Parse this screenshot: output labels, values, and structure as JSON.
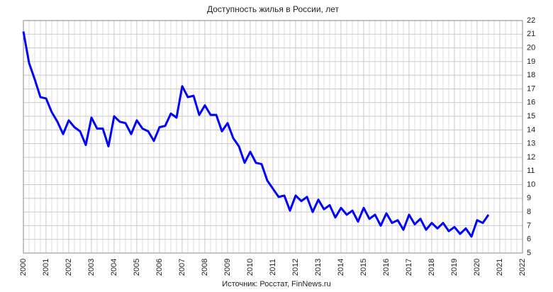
{
  "chart_data": {
    "type": "line",
    "title": "Доступность жилья в России, лет",
    "source": "Источник: Росстат, FinNews.ru",
    "x": [
      2000,
      2000.25,
      2000.5,
      2000.75,
      2001,
      2001.25,
      2001.5,
      2001.75,
      2002,
      2002.25,
      2002.5,
      2002.75,
      2003,
      2003.25,
      2003.5,
      2003.75,
      2004,
      2004.25,
      2004.5,
      2004.75,
      2005,
      2005.25,
      2005.5,
      2005.75,
      2006,
      2006.25,
      2006.5,
      2006.75,
      2007,
      2007.25,
      2007.5,
      2007.75,
      2008,
      2008.25,
      2008.5,
      2008.75,
      2009,
      2009.25,
      2009.5,
      2009.75,
      2010,
      2010.25,
      2010.5,
      2010.75,
      2011,
      2011.25,
      2011.5,
      2011.75,
      2012,
      2012.25,
      2012.5,
      2012.75,
      2013,
      2013.25,
      2013.5,
      2013.75,
      2014,
      2014.25,
      2014.5,
      2014.75,
      2015,
      2015.25,
      2015.5,
      2015.75,
      2016,
      2016.25,
      2016.5,
      2016.75,
      2017,
      2017.25,
      2017.5,
      2017.75,
      2018,
      2018.25,
      2018.5,
      2018.75,
      2019,
      2019.25,
      2019.5,
      2019.75,
      2020,
      2020.25,
      2020.5
    ],
    "series": [
      {
        "name": "Доступность жилья",
        "color": "#0000ff",
        "values": [
          21.2,
          18.9,
          17.7,
          16.4,
          16.3,
          15.3,
          14.6,
          13.7,
          14.7,
          14.2,
          13.9,
          12.9,
          14.9,
          14.1,
          14.1,
          12.8,
          15.0,
          14.6,
          14.5,
          13.7,
          14.7,
          14.1,
          13.9,
          13.2,
          14.2,
          14.3,
          15.2,
          14.9,
          17.2,
          16.4,
          16.5,
          15.1,
          15.8,
          15.1,
          15.1,
          13.9,
          14.5,
          13.4,
          12.8,
          11.6,
          12.4,
          11.6,
          11.5,
          10.3,
          9.7,
          9.1,
          9.2,
          8.1,
          9.2,
          8.8,
          9.1,
          8.0,
          8.9,
          8.2,
          8.5,
          7.6,
          8.3,
          7.8,
          8.1,
          7.3,
          8.3,
          7.5,
          7.8,
          7.0,
          7.9,
          7.2,
          7.4,
          6.7,
          7.8,
          7.1,
          7.5,
          6.7,
          7.2,
          6.8,
          7.2,
          6.6,
          6.9,
          6.4,
          6.8,
          6.2,
          7.4,
          7.2,
          7.8
        ]
      }
    ],
    "xlim": [
      2000,
      2022
    ],
    "xticks": [
      2000,
      2001,
      2002,
      2003,
      2004,
      2005,
      2006,
      2007,
      2008,
      2009,
      2010,
      2011,
      2012,
      2013,
      2014,
      2015,
      2016,
      2017,
      2018,
      2019,
      2020,
      2021,
      2022
    ],
    "ylim": [
      5,
      22
    ],
    "yticks": [
      5,
      6,
      7,
      8,
      9,
      10,
      11,
      12,
      13,
      14,
      15,
      16,
      17,
      18,
      19,
      20,
      21,
      22
    ],
    "grid": true,
    "y_axis_side": "right"
  }
}
